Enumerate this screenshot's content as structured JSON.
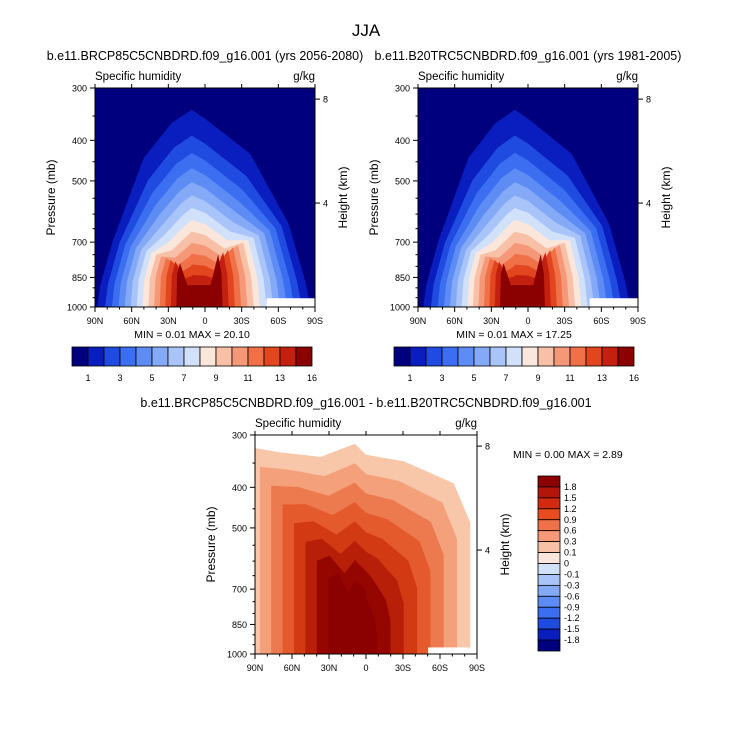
{
  "chart_data": {
    "type": "heatmap",
    "title": "JJA",
    "panels": [
      {
        "id": "future",
        "title": "b.e11.BRCP85C5CNBDRD.f09_g16.001 (yrs 2056-2080)",
        "left_label": "Specific humidity",
        "right_label": "g/kg",
        "ylabel": "Pressure (mb)",
        "ylabel_right": "Height (km)",
        "pressure_ticks": [
          "300",
          "400",
          "500",
          "700",
          "850",
          "1000"
        ],
        "height_ticks": [
          "8",
          "4"
        ],
        "lat_ticks": [
          "90N",
          "60N",
          "30N",
          "0",
          "30S",
          "60S",
          "90S"
        ],
        "stats": "MIN =   0.01   MAX =  20.10",
        "colorbar_labels": [
          "1",
          "3",
          "5",
          "7",
          "9",
          "11",
          "13",
          "16"
        ],
        "peak": 20.1
      },
      {
        "id": "historical",
        "title": "b.e11.B20TRC5CNBDRD.f09_g16.001 (yrs 1981-2005)",
        "left_label": "Specific humidity",
        "right_label": "g/kg",
        "ylabel": "Pressure (mb)",
        "ylabel_right": "Height (km)",
        "pressure_ticks": [
          "300",
          "400",
          "500",
          "700",
          "850",
          "1000"
        ],
        "height_ticks": [
          "8",
          "4"
        ],
        "lat_ticks": [
          "90N",
          "60N",
          "30N",
          "0",
          "30S",
          "60S",
          "90S"
        ],
        "stats": "MIN =   0.01   MAX =  17.25",
        "colorbar_labels": [
          "1",
          "3",
          "5",
          "7",
          "9",
          "11",
          "13",
          "16"
        ],
        "peak": 17.25
      },
      {
        "id": "difference",
        "title": "b.e11.BRCP85C5CNBDRD.f09_g16.001 - b.e11.B20TRC5CNBDRD.f09_g16.001",
        "left_label": "Specific humidity",
        "right_label": "g/kg",
        "ylabel": "Pressure (mb)",
        "ylabel_right": "Height (km)",
        "pressure_ticks": [
          "300",
          "400",
          "500",
          "700",
          "850",
          "1000"
        ],
        "height_ticks": [
          "8",
          "4"
        ],
        "lat_ticks": [
          "90N",
          "60N",
          "30N",
          "0",
          "30S",
          "60S",
          "90S"
        ],
        "stats": "MIN =   0.00   MAX =   2.89",
        "colorbar_labels": [
          "1.8",
          "1.5",
          "1.2",
          "0.9",
          "0.6",
          "0.3",
          "0.1",
          "0",
          "-0.1",
          "-0.3",
          "-0.6",
          "-0.9",
          "-1.2",
          "-1.5",
          "-1.8"
        ],
        "peak": 2.89
      }
    ],
    "diverging_colors": [
      "#00007f",
      "#0a1ec0",
      "#1f4be0",
      "#3b6ef0",
      "#5e8cf5",
      "#84a9f7",
      "#a9c4f8",
      "#d2e1fa",
      "#fbe6db",
      "#f8c0a6",
      "#f59877",
      "#f07048",
      "#e2461f",
      "#c42010",
      "#8b0000"
    ],
    "diff_colors": [
      "#8b0000",
      "#b3150b",
      "#d22a10",
      "#e84c1e",
      "#f07048",
      "#f59877",
      "#f8c0a6",
      "#fbe6db",
      "#d2e1fa",
      "#a9c4f8",
      "#84a9f7",
      "#5e8cf5",
      "#3b6ef0",
      "#1f4be0",
      "#0a1ec0",
      "#00007f"
    ]
  }
}
